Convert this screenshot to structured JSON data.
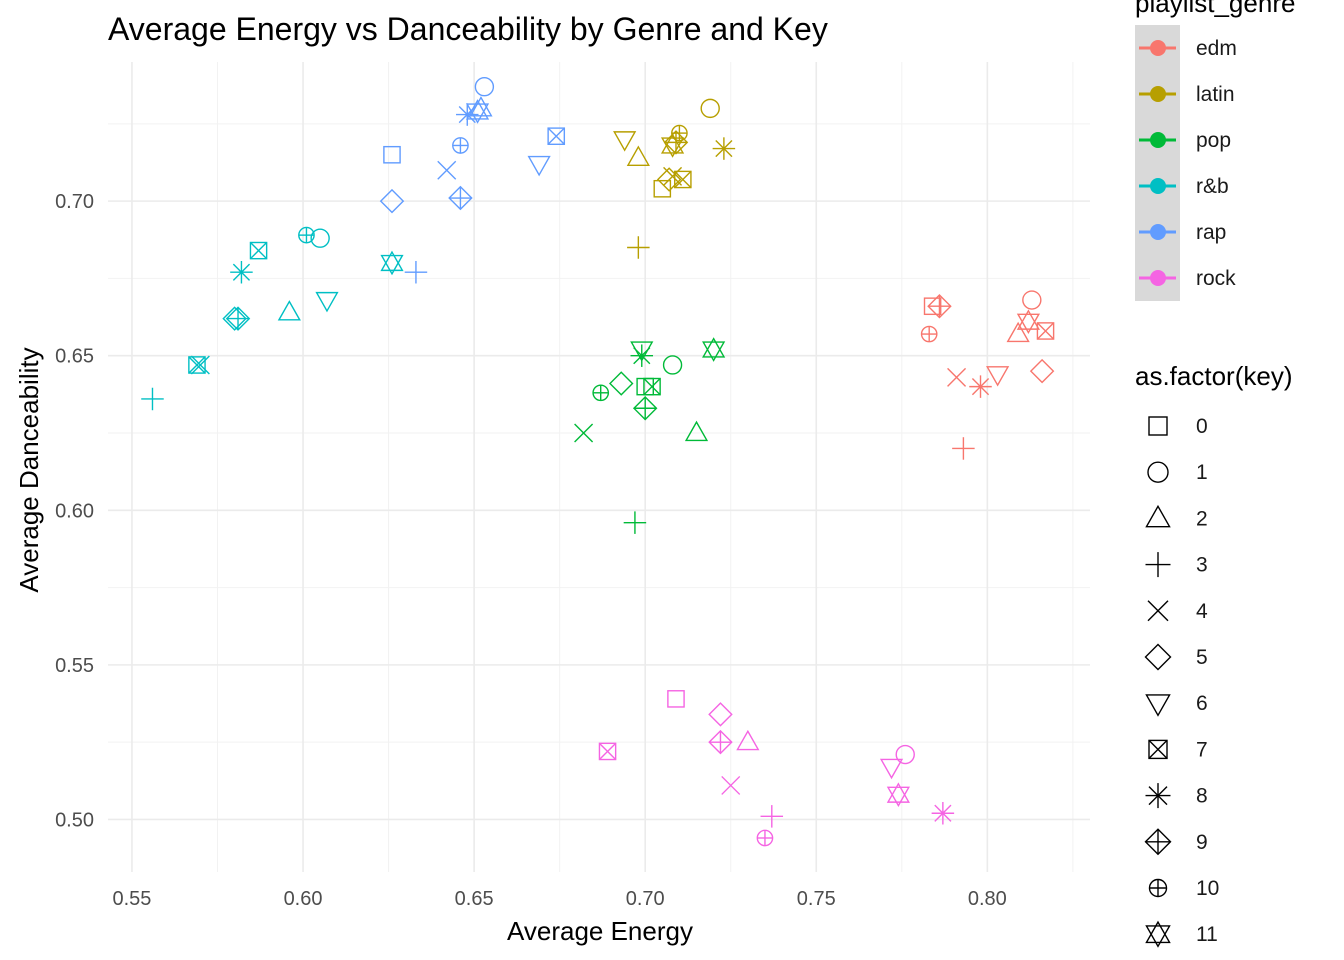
{
  "chart_data": {
    "type": "scatter",
    "title": "Average Energy vs Danceability by Genre and Key",
    "xlabel": "Average Energy",
    "ylabel": "Average Danceability",
    "xlim": [
      0.543,
      0.83
    ],
    "ylim": [
      0.483,
      0.745
    ],
    "x_ticks": [
      0.55,
      0.6,
      0.65,
      0.7,
      0.75,
      0.8
    ],
    "x_tick_labels": [
      "0.55",
      "0.60",
      "0.65",
      "0.70",
      "0.75",
      "0.80"
    ],
    "y_ticks": [
      0.5,
      0.55,
      0.6,
      0.65,
      0.7
    ],
    "y_tick_labels": [
      "0.50",
      "0.55",
      "0.60",
      "0.65",
      "0.70"
    ],
    "grid": true,
    "legends": {
      "color": {
        "title": "playlist_genre",
        "entries": [
          {
            "label": "edm",
            "color": "#F8766D"
          },
          {
            "label": "latin",
            "color": "#B79F00"
          },
          {
            "label": "pop",
            "color": "#00BA38"
          },
          {
            "label": "r&b",
            "color": "#00BFC4"
          },
          {
            "label": "rap",
            "color": "#619CFF"
          },
          {
            "label": "rock",
            "color": "#F564E3"
          }
        ]
      },
      "shape": {
        "title": "as.factor(key)",
        "entries": [
          "0",
          "1",
          "2",
          "3",
          "4",
          "5",
          "6",
          "7",
          "8",
          "9",
          "10",
          "11"
        ]
      }
    },
    "series": [
      {
        "name": "edm",
        "color": "#F8766D",
        "points": [
          {
            "key": 0,
            "x": 0.784,
            "y": 0.666
          },
          {
            "key": 1,
            "x": 0.813,
            "y": 0.668
          },
          {
            "key": 2,
            "x": 0.809,
            "y": 0.657
          },
          {
            "key": 3,
            "x": 0.793,
            "y": 0.62
          },
          {
            "key": 4,
            "x": 0.791,
            "y": 0.643
          },
          {
            "key": 5,
            "x": 0.816,
            "y": 0.645
          },
          {
            "key": 6,
            "x": 0.803,
            "y": 0.644
          },
          {
            "key": 7,
            "x": 0.817,
            "y": 0.658
          },
          {
            "key": 8,
            "x": 0.798,
            "y": 0.64
          },
          {
            "key": 9,
            "x": 0.786,
            "y": 0.666
          },
          {
            "key": 10,
            "x": 0.783,
            "y": 0.657
          },
          {
            "key": 11,
            "x": 0.812,
            "y": 0.661
          }
        ]
      },
      {
        "name": "latin",
        "color": "#B79F00",
        "points": [
          {
            "key": 0,
            "x": 0.705,
            "y": 0.704
          },
          {
            "key": 1,
            "x": 0.719,
            "y": 0.73
          },
          {
            "key": 2,
            "x": 0.698,
            "y": 0.714
          },
          {
            "key": 3,
            "x": 0.698,
            "y": 0.685
          },
          {
            "key": 4,
            "x": 0.708,
            "y": 0.708
          },
          {
            "key": 5,
            "x": 0.707,
            "y": 0.707
          },
          {
            "key": 6,
            "x": 0.694,
            "y": 0.72
          },
          {
            "key": 7,
            "x": 0.711,
            "y": 0.707
          },
          {
            "key": 8,
            "x": 0.723,
            "y": 0.717
          },
          {
            "key": 9,
            "x": 0.709,
            "y": 0.719
          },
          {
            "key": 10,
            "x": 0.71,
            "y": 0.722
          },
          {
            "key": 11,
            "x": 0.708,
            "y": 0.718
          }
        ]
      },
      {
        "name": "pop",
        "color": "#00BA38",
        "points": [
          {
            "key": 0,
            "x": 0.7,
            "y": 0.64
          },
          {
            "key": 1,
            "x": 0.708,
            "y": 0.647
          },
          {
            "key": 2,
            "x": 0.715,
            "y": 0.625
          },
          {
            "key": 3,
            "x": 0.697,
            "y": 0.596
          },
          {
            "key": 4,
            "x": 0.682,
            "y": 0.625
          },
          {
            "key": 5,
            "x": 0.693,
            "y": 0.641
          },
          {
            "key": 6,
            "x": 0.699,
            "y": 0.652
          },
          {
            "key": 7,
            "x": 0.702,
            "y": 0.64
          },
          {
            "key": 8,
            "x": 0.699,
            "y": 0.65
          },
          {
            "key": 9,
            "x": 0.7,
            "y": 0.633
          },
          {
            "key": 10,
            "x": 0.687,
            "y": 0.638
          },
          {
            "key": 11,
            "x": 0.72,
            "y": 0.652
          }
        ]
      },
      {
        "name": "r&b",
        "color": "#00BFC4",
        "points": [
          {
            "key": 1,
            "x": 0.605,
            "y": 0.688
          },
          {
            "key": 2,
            "x": 0.596,
            "y": 0.664
          },
          {
            "key": 3,
            "x": 0.556,
            "y": 0.636
          },
          {
            "key": 4,
            "x": 0.57,
            "y": 0.647
          },
          {
            "key": 5,
            "x": 0.58,
            "y": 0.662
          },
          {
            "key": 6,
            "x": 0.607,
            "y": 0.668
          },
          {
            "key": 7,
            "x": 0.569,
            "y": 0.647
          },
          {
            "key": 7,
            "x": 0.587,
            "y": 0.684
          },
          {
            "key": 8,
            "x": 0.582,
            "y": 0.677
          },
          {
            "key": 9,
            "x": 0.581,
            "y": 0.662
          },
          {
            "key": 10,
            "x": 0.601,
            "y": 0.689
          },
          {
            "key": 11,
            "x": 0.626,
            "y": 0.68
          }
        ]
      },
      {
        "name": "rap",
        "color": "#619CFF",
        "points": [
          {
            "key": 0,
            "x": 0.626,
            "y": 0.715
          },
          {
            "key": 1,
            "x": 0.653,
            "y": 0.737
          },
          {
            "key": 2,
            "x": 0.652,
            "y": 0.73
          },
          {
            "key": 3,
            "x": 0.633,
            "y": 0.677
          },
          {
            "key": 4,
            "x": 0.642,
            "y": 0.71
          },
          {
            "key": 5,
            "x": 0.626,
            "y": 0.7
          },
          {
            "key": 6,
            "x": 0.669,
            "y": 0.712
          },
          {
            "key": 7,
            "x": 0.674,
            "y": 0.721
          },
          {
            "key": 8,
            "x": 0.648,
            "y": 0.728
          },
          {
            "key": 9,
            "x": 0.646,
            "y": 0.701
          },
          {
            "key": 10,
            "x": 0.646,
            "y": 0.718
          },
          {
            "key": 11,
            "x": 0.651,
            "y": 0.729
          }
        ]
      },
      {
        "name": "rock",
        "color": "#F564E3",
        "points": [
          {
            "key": 0,
            "x": 0.709,
            "y": 0.539
          },
          {
            "key": 1,
            "x": 0.776,
            "y": 0.521
          },
          {
            "key": 2,
            "x": 0.73,
            "y": 0.525
          },
          {
            "key": 3,
            "x": 0.737,
            "y": 0.501
          },
          {
            "key": 4,
            "x": 0.725,
            "y": 0.511
          },
          {
            "key": 5,
            "x": 0.722,
            "y": 0.534
          },
          {
            "key": 6,
            "x": 0.772,
            "y": 0.517
          },
          {
            "key": 7,
            "x": 0.689,
            "y": 0.522
          },
          {
            "key": 8,
            "x": 0.787,
            "y": 0.502
          },
          {
            "key": 9,
            "x": 0.722,
            "y": 0.525
          },
          {
            "key": 10,
            "x": 0.735,
            "y": 0.494
          },
          {
            "key": 11,
            "x": 0.774,
            "y": 0.508
          }
        ]
      }
    ]
  }
}
